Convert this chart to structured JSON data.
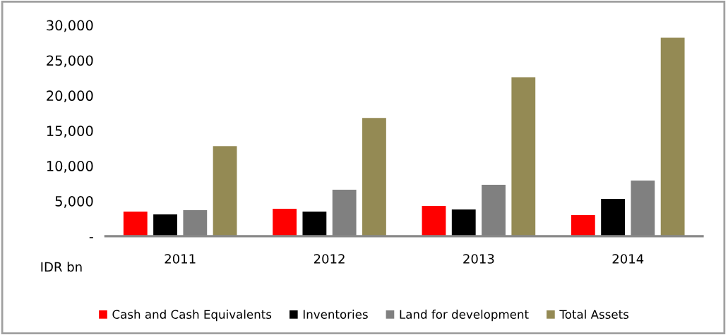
{
  "chart_data": {
    "type": "bar",
    "categories": [
      "2011",
      "2012",
      "2013",
      "2014"
    ],
    "series": [
      {
        "name": "Cash and Cash Equivalents",
        "color": "#ff0000",
        "values": [
          3500,
          3900,
          4300,
          3000
        ]
      },
      {
        "name": "Inventories",
        "color": "#000000",
        "values": [
          3100,
          3500,
          3800,
          5300
        ]
      },
      {
        "name": "Land for development",
        "color": "#808080",
        "values": [
          3700,
          6600,
          7300,
          7900
        ]
      },
      {
        "name": "Total Assets",
        "color": "#948a54",
        "values": [
          12800,
          16800,
          22600,
          28200
        ]
      }
    ],
    "ylim": [
      0,
      30000
    ],
    "yticks": [
      {
        "value": 0,
        "label": "-"
      },
      {
        "value": 5000,
        "label": "5,000"
      },
      {
        "value": 10000,
        "label": "10,000"
      },
      {
        "value": 15000,
        "label": "15,000"
      },
      {
        "value": 20000,
        "label": "20,000"
      },
      {
        "value": 25000,
        "label": "25,000"
      },
      {
        "value": 30000,
        "label": "30,000"
      }
    ],
    "annotations": [
      "IDR bn"
    ],
    "grid": false,
    "legend": "bottom"
  }
}
